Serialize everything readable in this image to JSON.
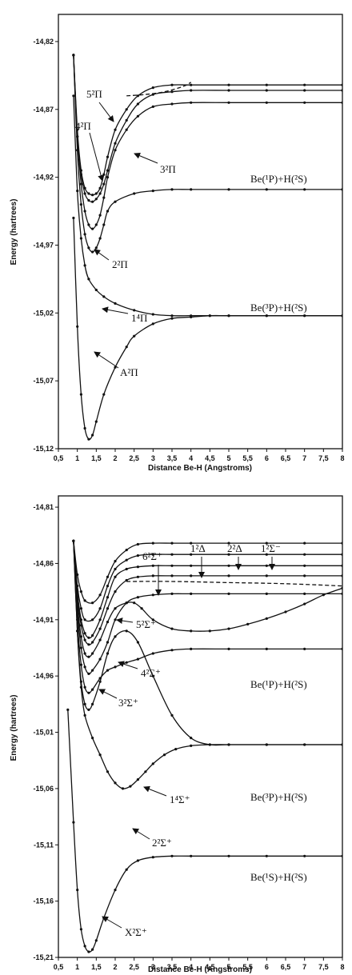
{
  "chart_data": [
    {
      "type": "line",
      "title": "",
      "xlabel": "Distance Be-H (Angstroms)",
      "ylabel": "Energy (hartrees)",
      "xlim": [
        0.5,
        8
      ],
      "ylim": [
        -15.12,
        -14.8
      ],
      "xticks": [
        "0,5",
        "1",
        "1,5",
        "2",
        "2,5",
        "3",
        "3,5",
        "4",
        "4,5",
        "5",
        "5,5",
        "6",
        "6,5",
        "7",
        "7,5",
        "8"
      ],
      "yticks": [
        "-14,82",
        "-14,87",
        "-14,92",
        "-14,97",
        "-15,02",
        "-15,07",
        "-15,12"
      ],
      "ytick_values": [
        -14.82,
        -14.87,
        -14.92,
        -14.97,
        -15.02,
        -15.07,
        -15.12
      ],
      "series": [
        {
          "x": [
            0.9,
            1.0,
            1.1,
            1.2,
            1.3,
            1.4,
            1.5,
            1.7,
            2.0,
            2.3,
            2.5,
            3.0,
            3.5,
            4.0,
            4.5,
            5.0,
            6.0,
            7.0,
            8.0
          ],
          "y": [
            -14.95,
            -15.03,
            -15.08,
            -15.105,
            -15.113,
            -15.11,
            -15.1,
            -15.08,
            -15.06,
            -15.045,
            -15.037,
            -15.028,
            -15.024,
            -15.023,
            -15.022,
            -15.022,
            -15.022,
            -15.022,
            -15.022
          ],
          "dash": false
        },
        {
          "x": [
            0.9,
            1.0,
            1.1,
            1.2,
            1.3,
            1.5,
            1.7,
            2.0,
            2.5,
            3.0,
            3.5,
            4.0,
            4.5,
            5.0,
            6.0,
            7.0,
            8.0
          ],
          "y": [
            -14.86,
            -14.93,
            -14.965,
            -14.985,
            -14.995,
            -15.003,
            -15.008,
            -15.013,
            -15.018,
            -15.021,
            -15.022,
            -15.022,
            -15.022,
            -15.022,
            -15.022,
            -15.022,
            -15.022
          ],
          "dash": false
        },
        {
          "x": [
            0.9,
            1.0,
            1.1,
            1.2,
            1.3,
            1.4,
            1.5,
            1.6,
            1.7,
            1.8,
            2.0,
            2.5,
            3.0,
            3.5,
            4.0,
            5.0,
            6.0,
            7.0,
            8.0
          ],
          "y": [
            -14.83,
            -14.9,
            -14.94,
            -14.962,
            -14.972,
            -14.975,
            -14.972,
            -14.965,
            -14.955,
            -14.945,
            -14.938,
            -14.932,
            -14.93,
            -14.929,
            -14.929,
            -14.929,
            -14.929,
            -14.929,
            -14.929
          ],
          "dash": false
        },
        {
          "x": [
            0.9,
            1.0,
            1.1,
            1.2,
            1.3,
            1.4,
            1.5,
            1.6,
            1.7,
            1.8,
            2.0,
            2.3,
            2.6,
            3.0,
            3.5,
            4.0,
            5.0,
            6.0,
            7.0,
            8.0
          ],
          "y": [
            -14.83,
            -14.89,
            -14.925,
            -14.945,
            -14.955,
            -14.958,
            -14.955,
            -14.948,
            -14.935,
            -14.92,
            -14.9,
            -14.885,
            -14.875,
            -14.868,
            -14.866,
            -14.865,
            -14.865,
            -14.865,
            -14.865,
            -14.865
          ],
          "dash": false
        },
        {
          "x": [
            0.9,
            1.0,
            1.1,
            1.2,
            1.3,
            1.4,
            1.5,
            1.6,
            1.7,
            1.8,
            2.0,
            2.3,
            2.6,
            3.0,
            3.5,
            4.0,
            5.0,
            6.0,
            7.0,
            8.0
          ],
          "y": [
            -14.83,
            -14.89,
            -14.918,
            -14.932,
            -14.937,
            -14.938,
            -14.936,
            -14.932,
            -14.925,
            -14.915,
            -14.895,
            -14.878,
            -14.866,
            -14.859,
            -14.857,
            -14.856,
            -14.856,
            -14.856,
            -14.856,
            -14.856
          ],
          "dash": false
        },
        {
          "x": [
            0.9,
            1.0,
            1.1,
            1.2,
            1.3,
            1.4,
            1.5,
            1.6,
            1.7,
            1.8,
            2.0,
            2.3,
            2.6,
            3.0,
            3.5,
            4.0,
            5.0,
            6.0,
            7.0,
            8.0
          ],
          "y": [
            -14.83,
            -14.885,
            -14.915,
            -14.928,
            -14.932,
            -14.933,
            -14.932,
            -14.928,
            -14.918,
            -14.905,
            -14.885,
            -14.87,
            -14.86,
            -14.854,
            -14.852,
            -14.852,
            -14.852,
            -14.852,
            -14.852,
            -14.852
          ],
          "dash": false
        },
        {
          "x": [
            2.3,
            2.8,
            3.3,
            3.8,
            4.0
          ],
          "y": [
            -14.86,
            -14.859,
            -14.857,
            -14.853,
            -14.85
          ],
          "dash": true
        }
      ],
      "annotations": [
        {
          "text": "A²Π"
        },
        {
          "text": "1⁴Π"
        },
        {
          "text": "2²Π"
        },
        {
          "text": "3²Π"
        },
        {
          "text": "4²Π"
        },
        {
          "text": "5²Π"
        },
        {
          "text": "Be(¹P)+H(²S)"
        },
        {
          "text": "Be(³P)+H(²S)"
        }
      ]
    },
    {
      "type": "line",
      "title": "",
      "xlabel": "Distance Be-H (Angstroms)",
      "ylabel": "Energy (hartrees)",
      "xlim": [
        0.5,
        8
      ],
      "ylim": [
        -15.21,
        -14.8
      ],
      "xticks": [
        "0,5",
        "1",
        "1,5",
        "2",
        "2,5",
        "3",
        "3,5",
        "4",
        "4,5",
        "5",
        "5,5",
        "6",
        "6,5",
        "7",
        "7,5",
        "8"
      ],
      "yticks": [
        "-14,81",
        "-14,86",
        "-14,91",
        "-14,96",
        "-15,01",
        "-15,06",
        "-15,11",
        "-15,16",
        "-15,21"
      ],
      "ytick_values": [
        -14.81,
        -14.86,
        -14.91,
        -14.96,
        -15.01,
        -15.06,
        -15.11,
        -15.16,
        -15.21
      ],
      "series": [
        {
          "x": [
            0.75,
            0.9,
            1.0,
            1.1,
            1.2,
            1.3,
            1.4,
            1.5,
            1.7,
            2.0,
            2.3,
            2.6,
            3.0,
            3.5,
            4.0,
            5.0,
            6.0,
            7.0,
            8.0
          ],
          "y": [
            -14.99,
            -15.09,
            -15.15,
            -15.185,
            -15.2,
            -15.205,
            -15.203,
            -15.195,
            -15.175,
            -15.15,
            -15.132,
            -15.124,
            -15.121,
            -15.12,
            -15.12,
            -15.12,
            -15.12,
            -15.12,
            -15.12
          ],
          "dash": false
        },
        {
          "x": [
            0.9,
            1.0,
            1.1,
            1.2,
            1.4,
            1.6,
            1.8,
            2.0,
            2.2,
            2.4,
            2.6,
            2.8,
            3.0,
            3.3,
            3.6,
            4.0,
            4.5,
            5.0,
            6.0,
            7.0,
            8.0
          ],
          "y": [
            -14.84,
            -14.92,
            -14.97,
            -14.995,
            -15.015,
            -15.03,
            -15.045,
            -15.055,
            -15.06,
            -15.058,
            -15.052,
            -15.045,
            -15.038,
            -15.03,
            -15.025,
            -15.022,
            -15.021,
            -15.021,
            -15.021,
            -15.021,
            -15.021
          ],
          "dash": false
        },
        {
          "x": [
            0.9,
            1.0,
            1.1,
            1.2,
            1.3,
            1.4,
            1.6,
            1.8,
            2.0,
            2.3,
            2.6,
            3.0,
            3.5,
            4.0,
            4.5,
            5.0,
            6.0,
            7.0,
            8.0
          ],
          "y": [
            -14.84,
            -14.92,
            -14.965,
            -14.985,
            -14.99,
            -14.985,
            -14.965,
            -14.94,
            -14.925,
            -14.92,
            -14.93,
            -14.96,
            -14.995,
            -15.015,
            -15.021,
            -15.021,
            -15.021,
            -15.021,
            -15.021
          ],
          "dash": false
        },
        {
          "x": [
            0.9,
            1.0,
            1.1,
            1.2,
            1.3,
            1.4,
            1.6,
            1.8,
            2.0,
            2.3,
            2.6,
            3.0,
            3.5,
            4.0,
            5.0,
            6.0,
            7.0,
            8.0
          ],
          "y": [
            -14.84,
            -14.91,
            -14.95,
            -14.97,
            -14.975,
            -14.972,
            -14.962,
            -14.955,
            -14.952,
            -14.948,
            -14.945,
            -14.94,
            -14.937,
            -14.936,
            -14.936,
            -14.936,
            -14.936,
            -14.936
          ],
          "dash": false
        },
        {
          "x": [
            0.9,
            1.0,
            1.1,
            1.2,
            1.3,
            1.4,
            1.6,
            1.8,
            2.0,
            2.3,
            2.6,
            3.0,
            3.5,
            4.0,
            5.0,
            6.0,
            7.0,
            8.0
          ],
          "y": [
            -14.84,
            -14.9,
            -14.935,
            -14.952,
            -14.958,
            -14.955,
            -14.945,
            -14.93,
            -14.91,
            -14.895,
            -14.89,
            -14.888,
            -14.887,
            -14.887,
            -14.887,
            -14.887,
            -14.887,
            -14.887
          ],
          "dash": false
        },
        {
          "x": [
            0.9,
            1.0,
            1.1,
            1.2,
            1.3,
            1.4,
            1.6,
            1.8,
            2.0,
            2.3,
            2.5,
            2.7,
            3.0,
            3.5,
            4.0,
            4.5,
            5.0,
            5.5,
            6.0,
            6.5,
            7.0,
            7.5,
            8.0
          ],
          "y": [
            -14.84,
            -14.895,
            -14.925,
            -14.94,
            -14.943,
            -14.94,
            -14.928,
            -14.912,
            -14.9,
            -14.895,
            -14.895,
            -14.9,
            -14.91,
            -14.918,
            -14.92,
            -14.92,
            -14.918,
            -14.914,
            -14.909,
            -14.903,
            -14.896,
            -14.888,
            -14.882
          ],
          "dash": false
        },
        {
          "x": [
            0.9,
            1.0,
            1.1,
            1.2,
            1.3,
            1.4,
            1.6,
            1.8,
            2.0,
            2.3,
            2.6,
            3.0,
            3.5,
            4.0,
            5.0,
            6.0,
            7.0,
            8.0
          ],
          "y": [
            -14.84,
            -14.89,
            -14.915,
            -14.928,
            -14.932,
            -14.93,
            -14.918,
            -14.9,
            -14.885,
            -14.875,
            -14.872,
            -14.871,
            -14.871,
            -14.871,
            -14.871,
            -14.871,
            -14.871,
            -14.871
          ],
          "dash": false
        },
        {
          "x": [
            0.9,
            1.0,
            1.1,
            1.2,
            1.3,
            1.4,
            1.6,
            1.8,
            2.0,
            2.3,
            2.6,
            3.0,
            3.5,
            4.0,
            5.0,
            6.0,
            7.0,
            8.0
          ],
          "y": [
            -14.84,
            -14.885,
            -14.91,
            -14.922,
            -14.926,
            -14.924,
            -14.91,
            -14.89,
            -14.872,
            -14.865,
            -14.863,
            -14.862,
            -14.862,
            -14.862,
            -14.862,
            -14.862,
            -14.862,
            -14.862
          ],
          "dash": false
        },
        {
          "x": [
            0.9,
            1.0,
            1.1,
            1.2,
            1.4,
            1.6,
            1.8,
            2.0,
            2.3,
            2.6,
            3.0,
            3.5,
            4.0,
            5.0,
            6.0,
            7.0,
            8.0
          ],
          "y": [
            -14.84,
            -14.88,
            -14.9,
            -14.91,
            -14.91,
            -14.9,
            -14.88,
            -14.865,
            -14.857,
            -14.853,
            -14.852,
            -14.852,
            -14.852,
            -14.852,
            -14.852,
            -14.852,
            -14.852
          ],
          "dash": false
        },
        {
          "x": [
            0.9,
            1.0,
            1.1,
            1.2,
            1.4,
            1.6,
            1.8,
            2.0,
            2.3,
            2.6,
            3.0,
            3.5,
            4.0,
            5.0,
            6.0,
            7.0,
            8.0
          ],
          "y": [
            -14.84,
            -14.87,
            -14.885,
            -14.893,
            -14.895,
            -14.888,
            -14.872,
            -14.858,
            -14.848,
            -14.843,
            -14.842,
            -14.842,
            -14.842,
            -14.842,
            -14.842,
            -14.842,
            -14.842
          ],
          "dash": false
        },
        {
          "x": [
            2.3,
            3.5,
            5.0,
            6.5,
            8.0
          ],
          "y": [
            -14.876,
            -14.876,
            -14.877,
            -14.878,
            -14.88
          ],
          "dash": true
        }
      ],
      "annotations": [
        {
          "text": "X²Σ⁺"
        },
        {
          "text": "2²Σ⁺"
        },
        {
          "text": "3²Σ⁺"
        },
        {
          "text": "4²Σ⁺"
        },
        {
          "text": "5²Σ⁺"
        },
        {
          "text": "6²Σ⁺"
        },
        {
          "text": "1⁴Σ⁺"
        },
        {
          "text": "1²Δ"
        },
        {
          "text": "2²Δ"
        },
        {
          "text": "1²Σ⁻"
        },
        {
          "text": "Be(¹P)+H(²S)"
        },
        {
          "text": "Be(³P)+H(²S)"
        },
        {
          "text": "Be(¹S)+H(²S)"
        }
      ]
    }
  ]
}
